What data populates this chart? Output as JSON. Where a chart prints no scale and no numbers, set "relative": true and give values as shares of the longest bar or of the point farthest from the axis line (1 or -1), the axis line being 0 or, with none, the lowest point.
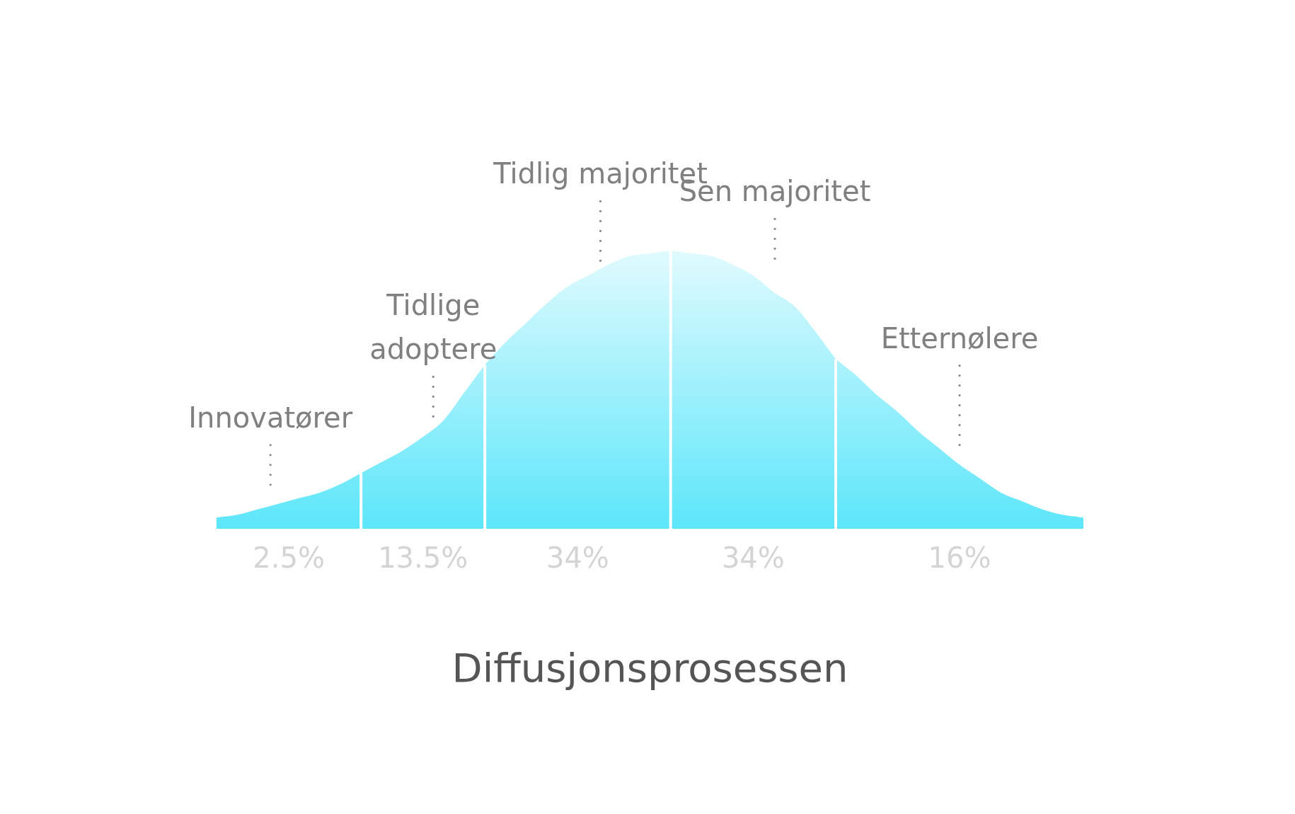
{
  "chart_data": {
    "type": "area",
    "relative": true,
    "title": "Diffusjonsprosessen",
    "legend": false,
    "categories": [
      null,
      null,
      null,
      null,
      null,
      null,
      null,
      null,
      null,
      null,
      null,
      null,
      null,
      null,
      null,
      null,
      null,
      null,
      null,
      null,
      null,
      null,
      null,
      null,
      null,
      null,
      null,
      null,
      null,
      null,
      null,
      null,
      null,
      null,
      null,
      null,
      null,
      null,
      null,
      null,
      null,
      null,
      null
    ],
    "series": [
      {
        "name": "Innovatører",
        "color": "#5ce6fa",
        "values": [
          0.04,
          0.05,
          0.07,
          0.09,
          0.11,
          0.13,
          0.16,
          0.2,
          null,
          null,
          null,
          null,
          null,
          null,
          null,
          null,
          null,
          null,
          null,
          null,
          null,
          null,
          null,
          null,
          null,
          null,
          null,
          null,
          null,
          null,
          null,
          null,
          null,
          null,
          null,
          null,
          null,
          null,
          null,
          null,
          null,
          null,
          null
        ]
      },
      {
        "name": "Tidlige adoptere",
        "color": "#5ce6fa",
        "values": [
          null,
          null,
          null,
          null,
          null,
          null,
          null,
          0.2,
          0.24,
          0.28,
          0.33,
          0.39,
          0.49,
          0.59,
          null,
          null,
          null,
          null,
          null,
          null,
          null,
          null,
          null,
          null,
          null,
          null,
          null,
          null,
          null,
          null,
          null,
          null,
          null,
          null,
          null,
          null,
          null,
          null,
          null,
          null,
          null,
          null,
          null
        ]
      },
      {
        "name": "Tidlig majoritet",
        "color": "#5ce6fa",
        "values": [
          null,
          null,
          null,
          null,
          null,
          null,
          null,
          null,
          null,
          null,
          null,
          null,
          null,
          0.59,
          0.67,
          0.74,
          0.81,
          0.87,
          0.91,
          0.95,
          0.98,
          0.99,
          1,
          null,
          null,
          null,
          null,
          null,
          null,
          null,
          null,
          null,
          null,
          null,
          null,
          null,
          null,
          null,
          null,
          null,
          null,
          null,
          null
        ]
      },
      {
        "name": "Sen majoritet",
        "color": "#5ce6fa",
        "values": [
          null,
          null,
          null,
          null,
          null,
          null,
          null,
          null,
          null,
          null,
          null,
          null,
          null,
          null,
          null,
          null,
          null,
          null,
          null,
          null,
          null,
          null,
          1,
          0.99,
          0.98,
          0.95,
          0.91,
          0.85,
          0.8,
          0.71,
          0.61,
          null,
          null,
          null,
          null,
          null,
          null,
          null,
          null,
          null,
          null,
          null,
          null
        ]
      },
      {
        "name": "Etternølere",
        "color": "#5ce6fa",
        "values": [
          null,
          null,
          null,
          null,
          null,
          null,
          null,
          null,
          null,
          null,
          null,
          null,
          null,
          null,
          null,
          null,
          null,
          null,
          null,
          null,
          null,
          null,
          null,
          null,
          null,
          null,
          null,
          null,
          null,
          null,
          0.61,
          0.55,
          0.48,
          0.42,
          0.35,
          0.29,
          0.23,
          0.18,
          0.13,
          0.1,
          0.07,
          0.05,
          0.04
        ]
      }
    ],
    "annotations": [
      "2.5%",
      "13.5%",
      "34%",
      "34%",
      "16%"
    ]
  }
}
